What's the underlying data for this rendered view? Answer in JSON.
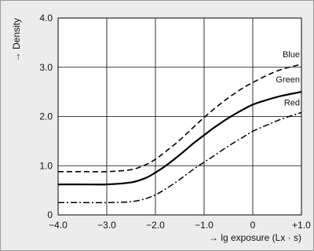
{
  "chart_data": {
    "type": "line",
    "title": "",
    "xlabel": "→  lg exposure (Lx · s)",
    "ylabel": "→  Density",
    "xlim": [
      -4.0,
      1.0
    ],
    "ylim": [
      0,
      4.0
    ],
    "grid": true,
    "legend": "inline",
    "x_ticks": [
      -4.0,
      -3.0,
      -2.0,
      -1.0,
      0,
      1.0
    ],
    "x_tick_labels": [
      "−4.0",
      "−3.0",
      "−2.0",
      "−1.0",
      "0",
      "+1.0"
    ],
    "y_ticks": [
      0,
      1.0,
      2.0,
      3.0,
      4.0
    ],
    "y_tick_labels": [
      "0",
      "1.0",
      "2.0",
      "3.0",
      "4.0"
    ],
    "series": [
      {
        "name": "Blue",
        "line_style": "dashed",
        "color": "#000000",
        "x": [
          -4.0,
          -3.5,
          -3.0,
          -2.5,
          -2.2,
          -2.0,
          -1.8,
          -1.5,
          -1.2,
          -1.0,
          -0.8,
          -0.5,
          -0.2,
          0.0,
          0.3,
          0.6,
          1.0
        ],
        "y": [
          0.88,
          0.88,
          0.88,
          0.92,
          1.02,
          1.13,
          1.28,
          1.52,
          1.8,
          1.98,
          2.15,
          2.38,
          2.58,
          2.69,
          2.84,
          2.96,
          3.06
        ]
      },
      {
        "name": "Green",
        "line_style": "solid",
        "color": "#000000",
        "x": [
          -4.0,
          -3.5,
          -3.0,
          -2.5,
          -2.2,
          -2.0,
          -1.8,
          -1.5,
          -1.2,
          -1.0,
          -0.8,
          -0.5,
          -0.2,
          0.0,
          0.3,
          0.6,
          1.0
        ],
        "y": [
          0.62,
          0.62,
          0.62,
          0.66,
          0.75,
          0.86,
          0.99,
          1.22,
          1.47,
          1.62,
          1.77,
          1.97,
          2.14,
          2.24,
          2.34,
          2.42,
          2.5
        ]
      },
      {
        "name": "Red",
        "line_style": "dash-dot",
        "color": "#000000",
        "x": [
          -4.0,
          -3.5,
          -3.0,
          -2.5,
          -2.2,
          -2.0,
          -1.8,
          -1.5,
          -1.2,
          -1.0,
          -0.8,
          -0.5,
          -0.2,
          0.0,
          0.3,
          0.6,
          1.0
        ],
        "y": [
          0.25,
          0.25,
          0.25,
          0.27,
          0.33,
          0.41,
          0.52,
          0.72,
          0.94,
          1.07,
          1.2,
          1.4,
          1.58,
          1.7,
          1.83,
          1.95,
          2.08
        ]
      }
    ]
  }
}
